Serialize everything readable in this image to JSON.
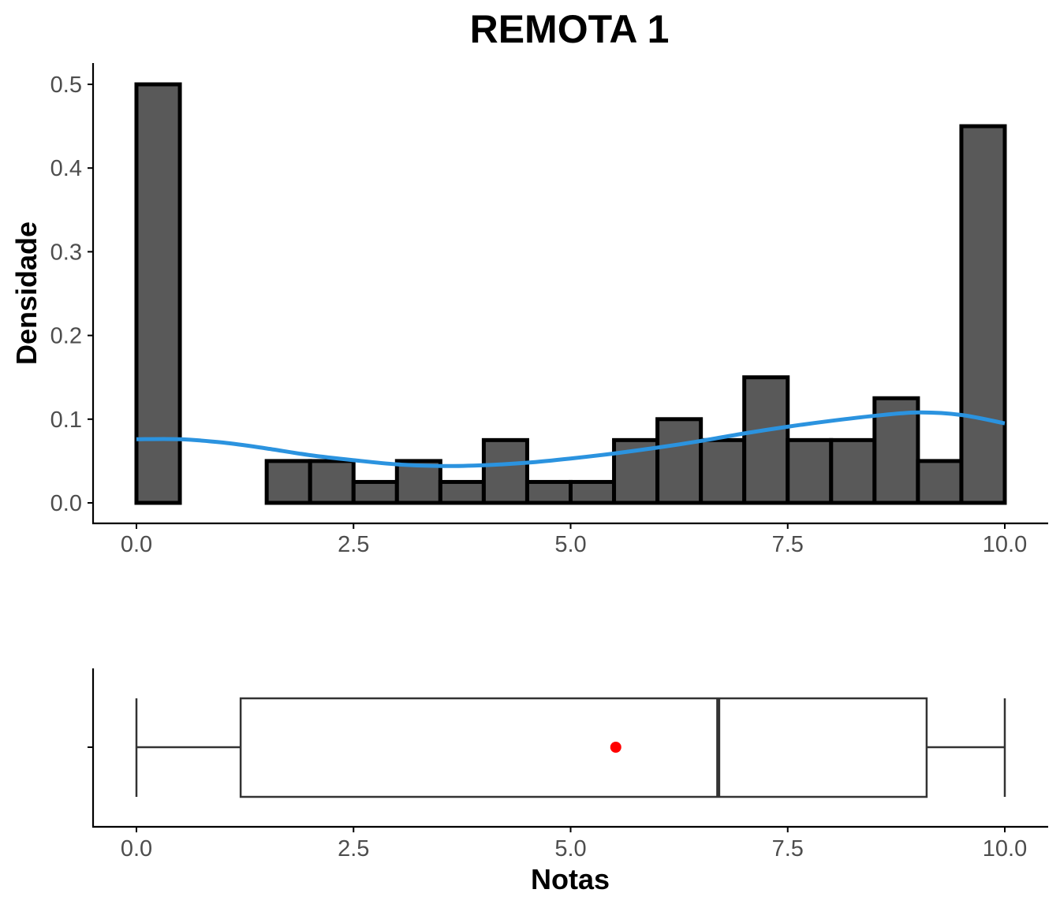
{
  "chart_data": [
    {
      "type": "bar",
      "title": "REMOTA 1",
      "xlabel": "",
      "ylabel": "Densidade",
      "xlim": [
        0,
        10
      ],
      "ylim": [
        0,
        0.5
      ],
      "grid": false,
      "x_ticks": [
        "0.0",
        "2.5",
        "5.0",
        "7.5",
        "10.0"
      ],
      "y_ticks": [
        "0.0",
        "0.1",
        "0.2",
        "0.3",
        "0.4",
        "0.5"
      ],
      "bin_width": 0.5,
      "bins": [
        {
          "start": 0.0,
          "end": 0.5,
          "density": 0.5
        },
        {
          "start": 0.5,
          "end": 1.0,
          "density": 0.0
        },
        {
          "start": 1.0,
          "end": 1.5,
          "density": 0.0
        },
        {
          "start": 1.5,
          "end": 2.0,
          "density": 0.05
        },
        {
          "start": 2.0,
          "end": 2.5,
          "density": 0.05
        },
        {
          "start": 2.5,
          "end": 3.0,
          "density": 0.025
        },
        {
          "start": 3.0,
          "end": 3.5,
          "density": 0.05
        },
        {
          "start": 3.5,
          "end": 4.0,
          "density": 0.025
        },
        {
          "start": 4.0,
          "end": 4.5,
          "density": 0.075
        },
        {
          "start": 4.5,
          "end": 5.0,
          "density": 0.025
        },
        {
          "start": 5.0,
          "end": 5.5,
          "density": 0.025
        },
        {
          "start": 5.5,
          "end": 6.0,
          "density": 0.075
        },
        {
          "start": 6.0,
          "end": 6.5,
          "density": 0.1
        },
        {
          "start": 6.5,
          "end": 7.0,
          "density": 0.075
        },
        {
          "start": 7.0,
          "end": 7.5,
          "density": 0.15
        },
        {
          "start": 7.5,
          "end": 8.0,
          "density": 0.075
        },
        {
          "start": 8.0,
          "end": 8.5,
          "density": 0.075
        },
        {
          "start": 8.5,
          "end": 9.0,
          "density": 0.125
        },
        {
          "start": 9.0,
          "end": 9.5,
          "density": 0.05
        },
        {
          "start": 9.5,
          "end": 10.0,
          "density": 0.45
        }
      ],
      "density_curve": {
        "color": "#2b93df",
        "x": [
          0,
          0.5,
          1,
          1.5,
          2,
          2.5,
          3,
          3.5,
          4,
          4.5,
          5,
          5.5,
          6,
          6.5,
          7,
          7.5,
          8,
          8.5,
          9,
          9.5,
          10
        ],
        "y": [
          0.076,
          0.076,
          0.072,
          0.065,
          0.057,
          0.051,
          0.046,
          0.044,
          0.045,
          0.048,
          0.053,
          0.059,
          0.066,
          0.074,
          0.083,
          0.091,
          0.098,
          0.104,
          0.108,
          0.105,
          0.095
        ]
      }
    },
    {
      "type": "boxplot",
      "xlabel": "Notas",
      "xlim": [
        0,
        10
      ],
      "grid": false,
      "x_ticks": [
        "0.0",
        "2.5",
        "5.0",
        "7.5",
        "10.0"
      ],
      "min": 0.0,
      "q1": 1.2,
      "median": 6.7,
      "q3": 9.1,
      "max": 10.0,
      "mean": 5.52,
      "mean_color": "#ff0000"
    }
  ]
}
